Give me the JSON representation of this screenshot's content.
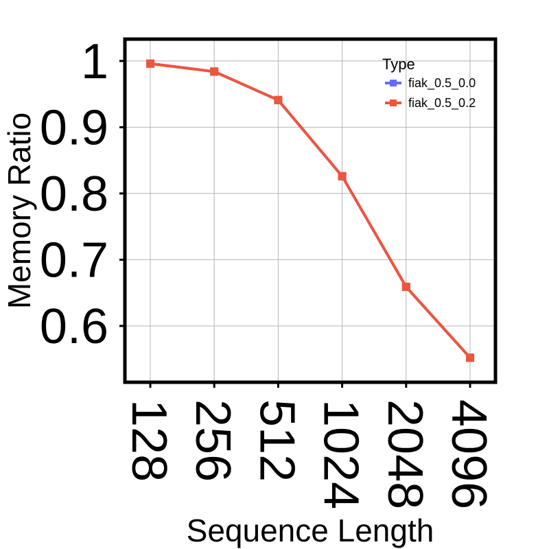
{
  "chart_data": {
    "type": "line",
    "categories": [
      "128",
      "256",
      "512",
      "1024",
      "2048",
      "4096"
    ],
    "series": [
      {
        "name": "fiak_0.5_0.0",
        "color": "#636efa",
        "values": [
          0.996,
          0.984,
          0.941,
          0.826,
          0.659,
          0.552
        ]
      },
      {
        "name": "fiak_0.5_0.2",
        "color": "#ef553b",
        "values": [
          0.996,
          0.984,
          0.941,
          0.826,
          0.659,
          0.552
        ]
      }
    ],
    "xlabel": "Sequence Length",
    "ylabel": "Memory Ratio",
    "ylim": [
      0.515,
      1.033
    ],
    "yticks": [
      0.6,
      0.7,
      0.8,
      0.9,
      1
    ],
    "ytick_labels": [
      "0.6",
      "0.7",
      "0.8",
      "0.9",
      "1"
    ],
    "legend": {
      "title": "Type",
      "placement": "top-right"
    },
    "grid": true
  }
}
